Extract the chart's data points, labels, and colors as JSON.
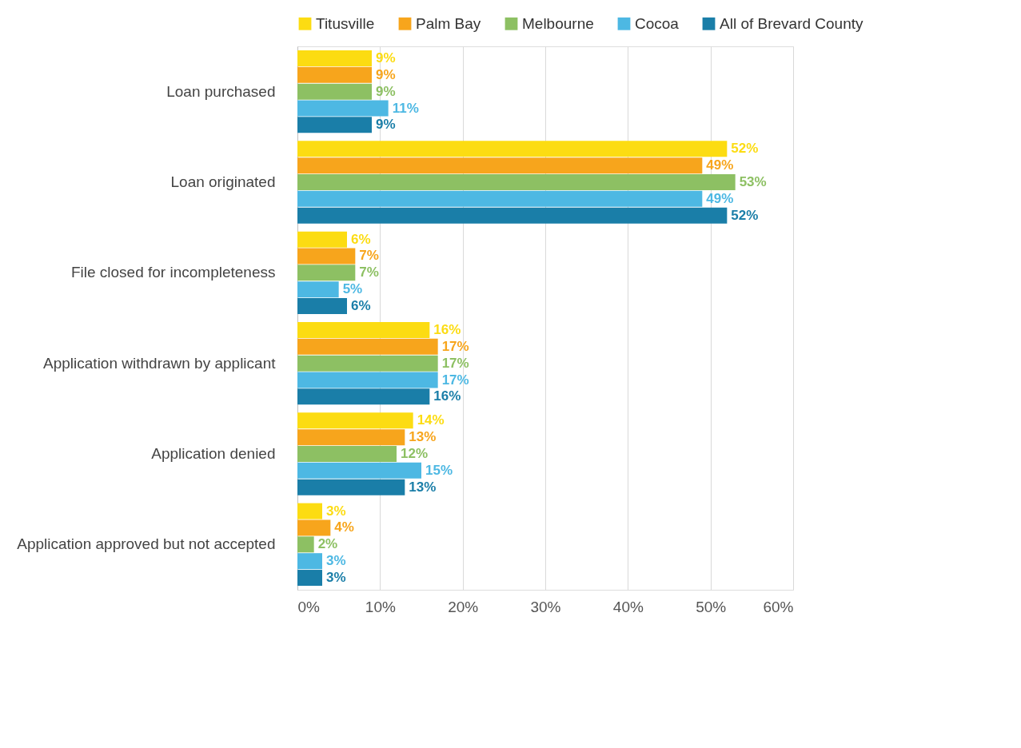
{
  "chart_data": {
    "type": "bar",
    "orientation": "horizontal",
    "categories": [
      "Loan purchased",
      "Loan originated",
      "File closed for incompleteness",
      "Application withdrawn by applicant",
      "Application denied",
      "Application approved but not accepted"
    ],
    "series": [
      {
        "name": "Titusville",
        "color": "#fcdc12",
        "values": [
          9,
          52,
          6,
          16,
          14,
          3
        ],
        "value_labels": [
          "9%",
          "52%",
          "6%",
          "16%",
          "14%",
          "3%"
        ]
      },
      {
        "name": "Palm Bay",
        "color": "#f7a51c",
        "values": [
          9,
          49,
          7,
          17,
          13,
          4
        ],
        "value_labels": [
          "9%",
          "49%",
          "7%",
          "17%",
          "13%",
          "4%"
        ]
      },
      {
        "name": "Melbourne",
        "color": "#8dc063",
        "values": [
          9,
          53,
          7,
          17,
          12,
          2
        ],
        "value_labels": [
          "9%",
          "53%",
          "7%",
          "17%",
          "12%",
          "2%"
        ]
      },
      {
        "name": "Cocoa",
        "color": "#4db8e3",
        "values": [
          11,
          49,
          5,
          17,
          15,
          3
        ],
        "value_labels": [
          "11%",
          "49%",
          "5%",
          "17%",
          "15%",
          "3%"
        ]
      },
      {
        "name": "All of Brevard County",
        "color": "#1a7ea8",
        "values": [
          9,
          52,
          6,
          16,
          13,
          3
        ],
        "value_labels": [
          "9%",
          "52%",
          "6%",
          "16%",
          "13%",
          "3%"
        ]
      }
    ],
    "xlim": [
      0,
      60
    ],
    "xticks": [
      {
        "value": 0,
        "label": "0%"
      },
      {
        "value": 10,
        "label": "10%"
      },
      {
        "value": 20,
        "label": "20%"
      },
      {
        "value": 30,
        "label": "30%"
      },
      {
        "value": 40,
        "label": "40%"
      },
      {
        "value": 50,
        "label": "50%"
      },
      {
        "value": 60,
        "label": "60%"
      }
    ],
    "grid": "x",
    "legend": "top"
  }
}
